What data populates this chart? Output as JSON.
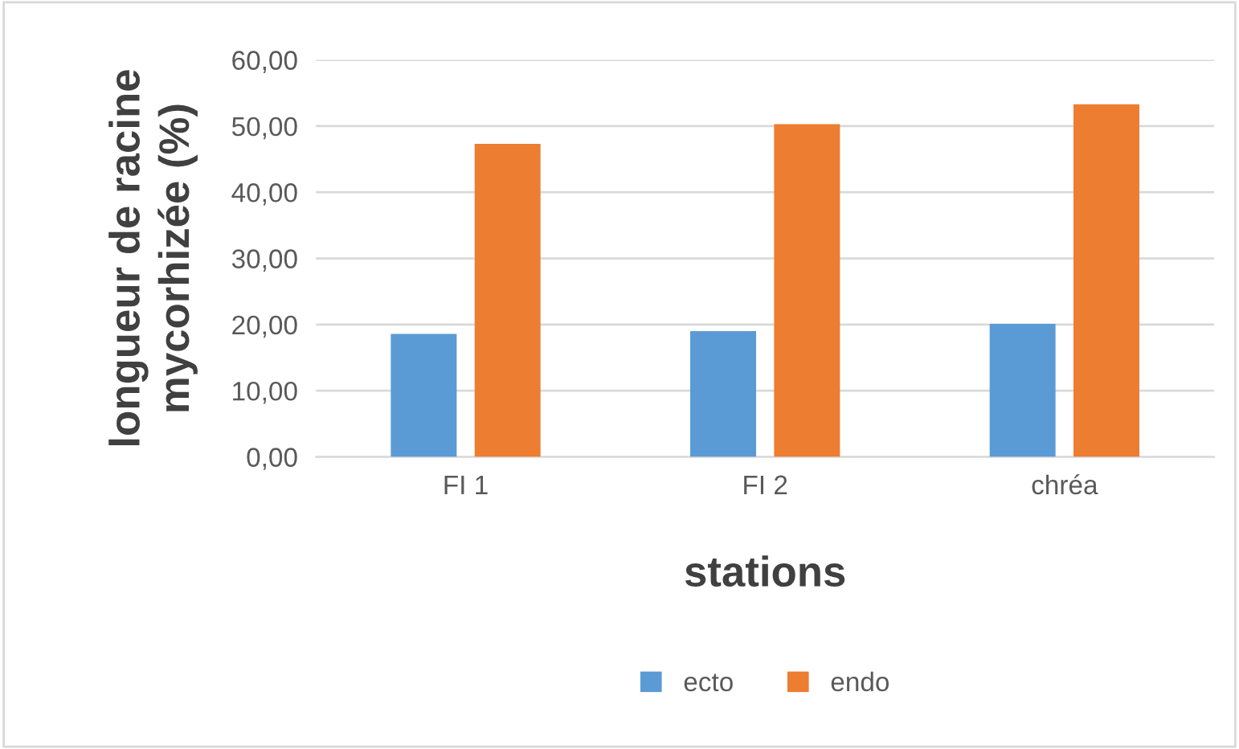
{
  "chart_data": {
    "type": "bar",
    "xlabel": "stations",
    "ylabel": "longueur de racine\nmycorhizée (%)",
    "categories": [
      "FI 1",
      "FI 2",
      "chréa"
    ],
    "series": [
      {
        "name": "ecto",
        "color": "#5b9bd5",
        "values": [
          18.6,
          19.0,
          20.1
        ]
      },
      {
        "name": "endo",
        "color": "#ed7d31",
        "values": [
          47.3,
          50.3,
          53.3
        ]
      }
    ],
    "ylim": [
      0,
      60
    ],
    "yticks": [
      {
        "value": 0,
        "label": "0,00"
      },
      {
        "value": 10,
        "label": "10,00"
      },
      {
        "value": 20,
        "label": "20,00"
      },
      {
        "value": 30,
        "label": "30,00"
      },
      {
        "value": 40,
        "label": "40,00"
      },
      {
        "value": 50,
        "label": "50,00"
      },
      {
        "value": 60,
        "label": "60,00"
      }
    ],
    "grid": "y",
    "legend": "bottom"
  }
}
